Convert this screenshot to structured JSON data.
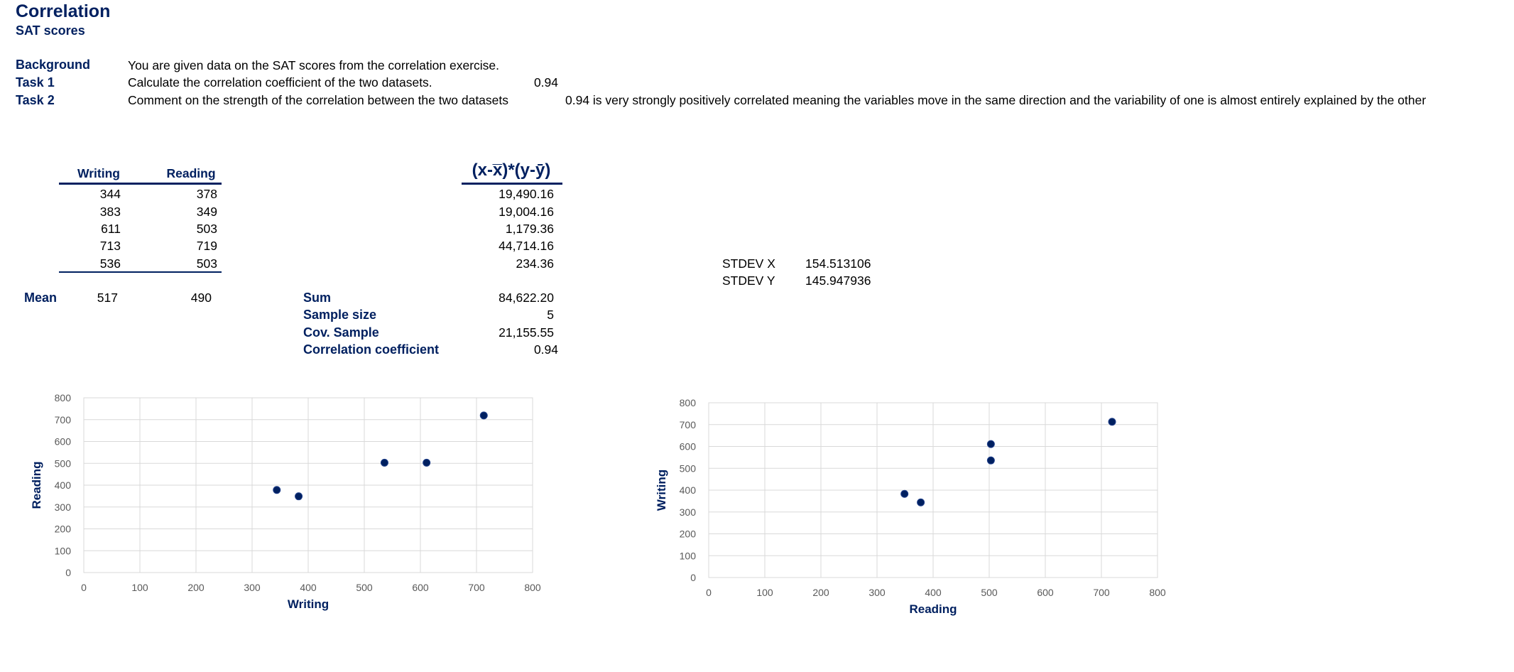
{
  "header": {
    "title": "Correlation",
    "subtitle": "SAT scores"
  },
  "tasks": {
    "background_label": "Background",
    "background_text": "You are given data on the SAT scores from the correlation exercise.",
    "task1_label": "Task 1",
    "task1_text": "Calculate the correlation coefficient of the two datasets.",
    "task1_answer": "0.94",
    "task2_label": "Task 2",
    "task2_text": "Comment on the strength of the correlation between the two datasets",
    "task2_answer": "0.94 is very strongly positively correlated meaning the variables move in the same direction and the variability of one is almost entirely explained by the other"
  },
  "table": {
    "col_writing": "Writing",
    "col_reading": "Reading",
    "col_product": "(x-x̅)*(y-ȳ)",
    "rows": [
      {
        "writing": "344",
        "reading": "378",
        "product": "19,490.16"
      },
      {
        "writing": "383",
        "reading": "349",
        "product": "19,004.16"
      },
      {
        "writing": "611",
        "reading": "503",
        "product": "1,179.36"
      },
      {
        "writing": "713",
        "reading": "719",
        "product": "44,714.16"
      },
      {
        "writing": "536",
        "reading": "503",
        "product": "234.36"
      }
    ],
    "mean_label": "Mean",
    "mean_writing": "517",
    "mean_reading": "490"
  },
  "stats": {
    "sum_label": "Sum",
    "sum_value": "84,622.20",
    "sample_label": "Sample size",
    "sample_value": "5",
    "cov_label": "Cov. Sample",
    "cov_value": "21,155.55",
    "corr_label": "Correlation coefficient",
    "corr_value": "0.94"
  },
  "stdev": {
    "x_label": "STDEV X",
    "x_value": "154.513106",
    "y_label": "STDEV Y",
    "y_value": "145.947936"
  },
  "colors": {
    "navy": "#002060",
    "grid": "#d9d9d9",
    "axis_text": "#595959"
  },
  "chart_data": [
    {
      "type": "scatter",
      "title": "",
      "xlabel": "Writing",
      "ylabel": "Reading",
      "xlim": [
        0,
        800
      ],
      "ylim": [
        0,
        800
      ],
      "xticks": [
        0,
        100,
        200,
        300,
        400,
        500,
        600,
        700,
        800
      ],
      "yticks": [
        0,
        100,
        200,
        300,
        400,
        500,
        600,
        700,
        800
      ],
      "grid": true,
      "points": [
        [
          344,
          378
        ],
        [
          383,
          349
        ],
        [
          611,
          503
        ],
        [
          713,
          719
        ],
        [
          536,
          503
        ]
      ]
    },
    {
      "type": "scatter",
      "title": "",
      "xlabel": "Reading",
      "ylabel": "Writing",
      "xlim": [
        0,
        800
      ],
      "ylim": [
        0,
        800
      ],
      "xticks": [
        0,
        100,
        200,
        300,
        400,
        500,
        600,
        700,
        800
      ],
      "yticks": [
        0,
        100,
        200,
        300,
        400,
        500,
        600,
        700,
        800
      ],
      "grid": true,
      "points": [
        [
          378,
          344
        ],
        [
          349,
          383
        ],
        [
          503,
          611
        ],
        [
          719,
          713
        ],
        [
          503,
          536
        ]
      ]
    }
  ]
}
